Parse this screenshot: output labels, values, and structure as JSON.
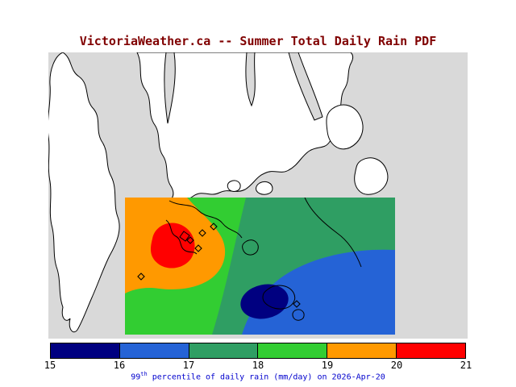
{
  "title": "VictoriaWeather.ca -- Summer Total Daily Rain PDF",
  "caption": {
    "value": "99",
    "superscript": "th",
    "rest": " percentile of daily rain (mm/day) on 2026-Apr-20"
  },
  "colors": {
    "title": "#800000",
    "caption": "#0000cd",
    "tick": "#000000"
  },
  "map": {
    "water_color": "#d9d9d9",
    "land_color": "#ffffff",
    "coast_color": "#000000"
  },
  "colorbar": {
    "ticks": [
      "15",
      "16",
      "17",
      "18",
      "19",
      "20",
      "21"
    ],
    "segment_colors": [
      "#000080",
      "#2563d6",
      "#2f9e63",
      "#32cd32",
      "#ff9900",
      "#ff0000"
    ]
  },
  "chart_data": {
    "type": "heatmap",
    "title": "VictoriaWeather.ca -- Summer Total Daily Rain PDF",
    "variable": "99th percentile of daily rain",
    "units": "mm/day",
    "date": "2026-Apr-20",
    "contour_levels": [
      15,
      16,
      17,
      18,
      19,
      20,
      21
    ],
    "level_colors": [
      "#000080",
      "#2563d6",
      "#2f9e63",
      "#32cd32",
      "#ff9900",
      "#ff0000"
    ],
    "legend_position": "bottom",
    "spatial_pattern": "maximum 20-21 mm/day near Victoria in the west of the domain, decreasing southeastward to a 15-16 mm/day minimum offshore"
  }
}
